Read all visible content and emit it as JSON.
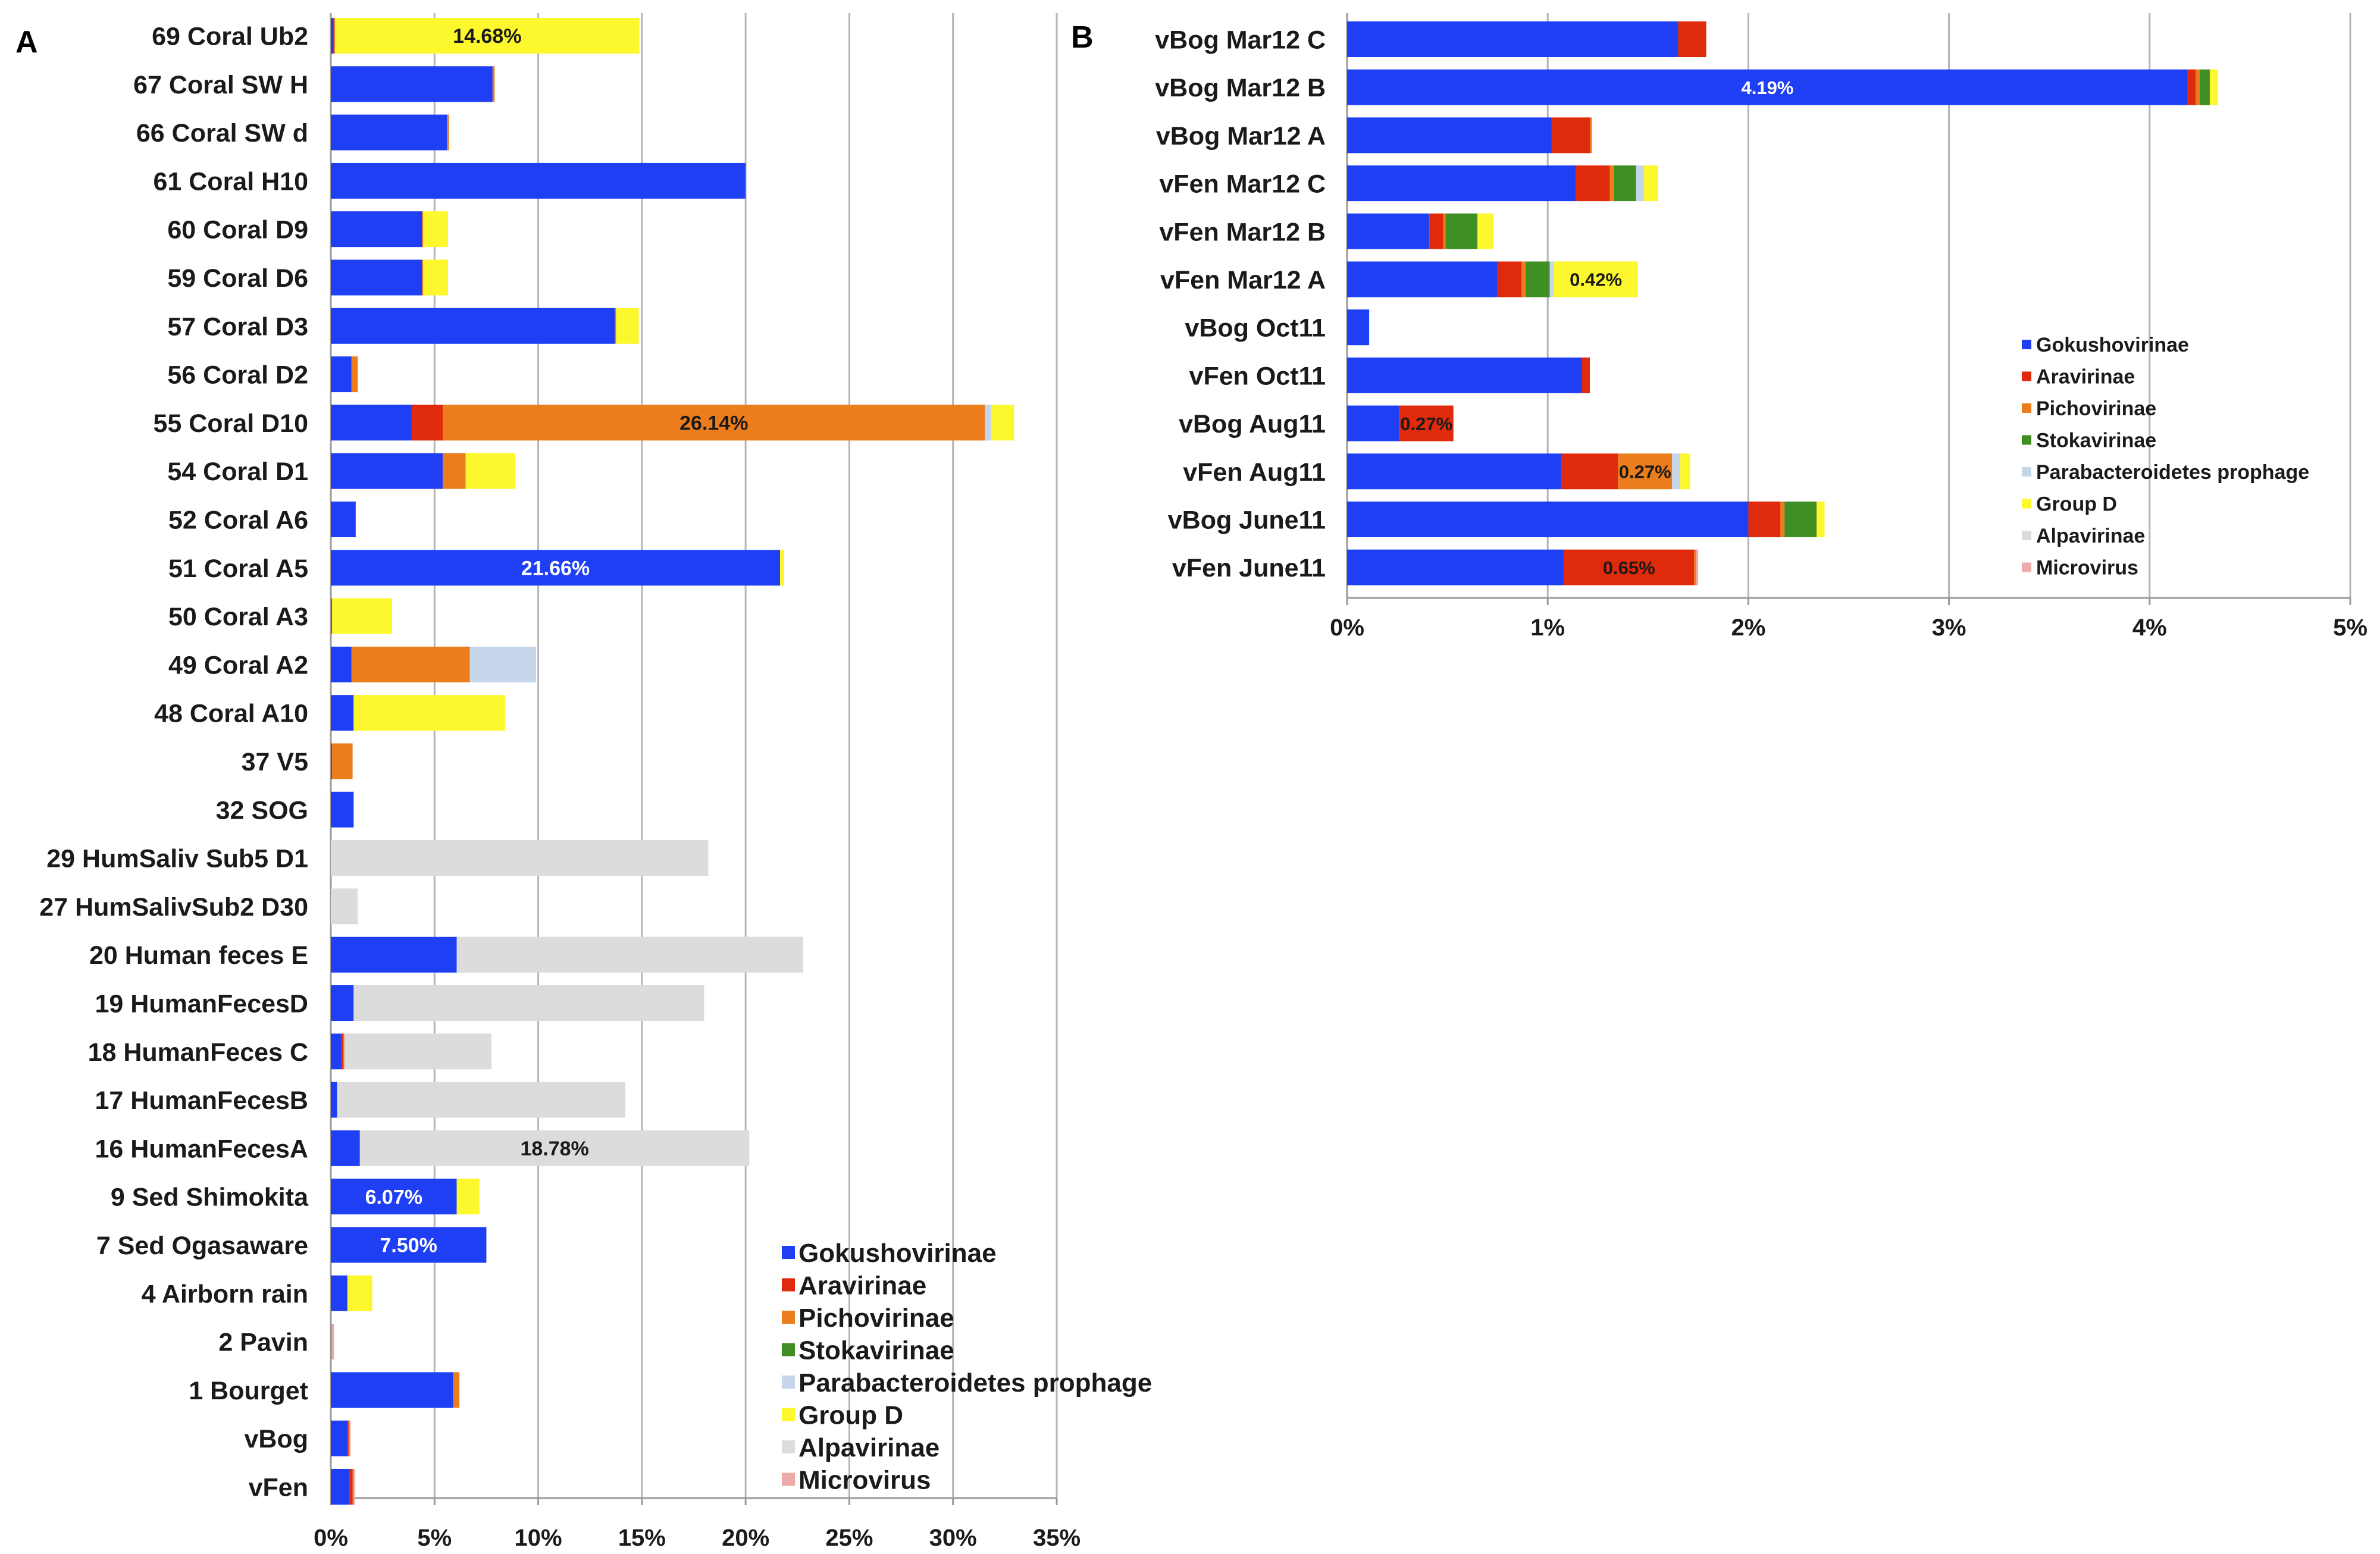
{
  "chart_data": [
    {
      "panel": "A",
      "type": "bar",
      "orientation": "horizontal",
      "stacked": true,
      "categories": [
        "69 Coral Ub2",
        "67 Coral SW H",
        "66 Coral SW d",
        "61 Coral H10",
        "60 Coral D9",
        "59 Coral D6",
        "57 Coral D3",
        "56 Coral D2",
        "55 Coral D10",
        "54 Coral D1",
        "52 Coral A6",
        "51 Coral A5",
        "50 Coral A3",
        "49 Coral A2",
        "48 Coral A10",
        "37 V5",
        "32 SOG",
        "29 HumSaliv Sub5 D1",
        "27 HumSalivSub2 D30",
        "20 Human feces E",
        "19 HumanFecesD",
        "18 HumanFeces C",
        "17 HumanFecesB",
        "16 HumanFecesA",
        "9 Sed Shimokita",
        "7 Sed Ogasaware",
        "4 Airborn rain",
        "2 Pavin",
        "1 Bourget",
        "vBog",
        "vFen"
      ],
      "series": [
        {
          "name": "Gokushovirinae",
          "color": "#1f3ff5",
          "values": [
            0.1,
            7.8,
            5.6,
            20.0,
            4.4,
            4.4,
            13.7,
            1.0,
            3.9,
            5.4,
            1.2,
            21.66,
            0.05,
            1.0,
            1.1,
            0.05,
            1.1,
            0,
            0,
            6.07,
            1.1,
            0.5,
            0.3,
            1.4,
            6.07,
            7.5,
            0.8,
            0,
            5.9,
            0.8,
            0.9
          ]
        },
        {
          "name": "Aravirinae",
          "color": "#e02a0c",
          "values": [
            0.05,
            0,
            0,
            0,
            0,
            0,
            0,
            0,
            1.5,
            0,
            0,
            0,
            0,
            0,
            0,
            0,
            0,
            0,
            0,
            0,
            0,
            0.1,
            0,
            0,
            0,
            0,
            0,
            0,
            0,
            0.05,
            0.15
          ]
        },
        {
          "name": "Pichovirinae",
          "color": "#ec7d1c",
          "values": [
            0.05,
            0.1,
            0.1,
            0,
            0.05,
            0.05,
            0.05,
            0.3,
            26.14,
            1.1,
            0,
            0,
            0,
            5.7,
            0,
            1.0,
            0,
            0,
            0,
            0,
            0,
            0.05,
            0,
            0,
            0,
            0,
            0,
            0.05,
            0.3,
            0.05,
            0.05
          ]
        },
        {
          "name": "Stokavirinae",
          "color": "#3f8f24",
          "values": [
            0,
            0,
            0,
            0,
            0,
            0,
            0,
            0,
            0,
            0,
            0,
            0,
            0,
            0,
            0,
            0,
            0,
            0,
            0,
            0,
            0,
            0,
            0,
            0,
            0,
            0,
            0,
            0,
            0,
            0,
            0
          ]
        },
        {
          "name": "Parabacteroidetes prophage",
          "color": "#c6d6ea",
          "values": [
            0,
            0,
            0,
            0,
            0,
            0,
            0,
            0,
            0.3,
            0,
            0,
            0,
            0,
            3.2,
            0,
            0,
            0,
            0,
            0,
            0,
            0,
            0,
            0,
            0,
            0,
            0,
            0,
            0,
            0,
            0,
            0
          ]
        },
        {
          "name": "Group D",
          "color": "#fdf72e",
          "values": [
            14.68,
            0,
            0,
            0,
            1.2,
            1.2,
            1.1,
            0,
            1.1,
            2.4,
            0,
            0.2,
            2.9,
            0,
            7.3,
            0,
            0,
            0,
            0,
            0,
            0,
            0,
            0,
            0,
            1.1,
            0,
            1.2,
            0,
            0,
            0,
            0
          ]
        },
        {
          "name": "Alpavirinae",
          "color": "#dcdcdc",
          "values": [
            0,
            0,
            0,
            0,
            0,
            0,
            0,
            0,
            0,
            0,
            0,
            0,
            0,
            0,
            0,
            0,
            0,
            18.2,
            1.3,
            16.7,
            16.9,
            7.1,
            13.9,
            18.78,
            0,
            0,
            0,
            0,
            0,
            0,
            0
          ]
        },
        {
          "name": "Microvirus",
          "color": "#eeaaa8",
          "values": [
            0,
            0,
            0,
            0,
            0,
            0,
            0,
            0,
            0,
            0,
            0,
            0,
            0,
            0,
            0,
            0,
            0,
            0,
            0,
            0,
            0,
            0,
            0,
            0,
            0,
            0,
            0,
            0.1,
            0,
            0.05,
            0.05
          ]
        }
      ],
      "data_labels": [
        {
          "category": "69 Coral Ub2",
          "series": "Group D",
          "text": "14.68%",
          "color": "#1a1a1a"
        },
        {
          "category": "55 Coral D10",
          "series": "Pichovirinae",
          "text": "26.14%",
          "color": "#1a1a1a"
        },
        {
          "category": "51 Coral A5",
          "series": "Gokushovirinae",
          "text": "21.66%",
          "color": "#ffffff"
        },
        {
          "category": "16 HumanFecesA",
          "series": "Alpavirinae",
          "text": "18.78%",
          "color": "#1a1a1a"
        },
        {
          "category": "9 Sed Shimokita",
          "series": "Gokushovirinae",
          "text": "6.07%",
          "color": "#ffffff"
        },
        {
          "category": "7 Sed Ogasaware",
          "series": "Gokushovirinae",
          "text": "7.50%",
          "color": "#ffffff"
        }
      ],
      "xlim": [
        0,
        35
      ],
      "xticks": [
        0,
        5,
        10,
        15,
        20,
        25,
        30,
        35
      ],
      "xtick_labels": [
        "0%",
        "5%",
        "10%",
        "15%",
        "20%",
        "25%",
        "30%",
        "35%"
      ],
      "grid": true,
      "legend_position": "bottom-right",
      "title": "",
      "xlabel": "",
      "ylabel": ""
    },
    {
      "panel": "B",
      "type": "bar",
      "orientation": "horizontal",
      "stacked": true,
      "categories": [
        "vBog Mar12 C",
        "vBog Mar12 B",
        "vBog Mar12 A",
        "vFen Mar12 C",
        "vFen Mar12 B",
        "vFen Mar12 A",
        "vBog Oct11",
        "vFen Oct11",
        "vBog Aug11",
        "vFen Aug11",
        "vBog June11",
        "vFen June11"
      ],
      "series": [
        {
          "name": "Gokushovirinae",
          "color": "#1f3ff5",
          "values": [
            1.65,
            4.19,
            1.02,
            1.14,
            0.41,
            0.75,
            0.11,
            1.17,
            0.26,
            1.07,
            2.0,
            1.08
          ]
        },
        {
          "name": "Aravirinae",
          "color": "#e02a0c",
          "values": [
            0.14,
            0.04,
            0.19,
            0.17,
            0.07,
            0.12,
            0,
            0.04,
            0.27,
            0.28,
            0.16,
            0.65
          ]
        },
        {
          "name": "Pichovirinae",
          "color": "#ec7d1c",
          "values": [
            0,
            0.02,
            0.01,
            0.02,
            0.01,
            0.02,
            0,
            0,
            0,
            0.27,
            0.02,
            0.01
          ]
        },
        {
          "name": "Stokavirinae",
          "color": "#3f8f24",
          "values": [
            0,
            0.05,
            0,
            0.11,
            0.16,
            0.12,
            0,
            0,
            0,
            0,
            0.16,
            0
          ]
        },
        {
          "name": "Parabacteroidetes prophage",
          "color": "#c6d6ea",
          "values": [
            0,
            0,
            0,
            0.04,
            0,
            0.02,
            0,
            0,
            0,
            0.04,
            0,
            0
          ]
        },
        {
          "name": "Group D",
          "color": "#fdf72e",
          "values": [
            0,
            0.04,
            0,
            0.07,
            0.08,
            0.42,
            0,
            0,
            0,
            0.05,
            0.04,
            0
          ]
        },
        {
          "name": "Alpavirinae",
          "color": "#dcdcdc",
          "values": [
            0,
            0,
            0,
            0,
            0,
            0,
            0,
            0,
            0,
            0,
            0,
            0
          ]
        },
        {
          "name": "Microvirus",
          "color": "#eeaaa8",
          "values": [
            0,
            0,
            0,
            0,
            0,
            0,
            0,
            0,
            0,
            0,
            0,
            0.01
          ]
        }
      ],
      "data_labels": [
        {
          "category": "vBog Mar12 B",
          "series": "Gokushovirinae",
          "text": "4.19%",
          "color": "#ffffff"
        },
        {
          "category": "vFen Mar12 A",
          "series": "Group D",
          "text": "0.42%",
          "color": "#1a1a1a"
        },
        {
          "category": "vBog Aug11",
          "series": "Aravirinae",
          "text": "0.27%",
          "color": "#1a1a1a"
        },
        {
          "category": "vFen Aug11",
          "series": "Pichovirinae",
          "text": "0.27%",
          "color": "#1a1a1a"
        },
        {
          "category": "vFen June11",
          "series": "Aravirinae",
          "text": "0.65%",
          "color": "#1a1a1a"
        }
      ],
      "xlim": [
        0,
        5
      ],
      "xticks": [
        0,
        1,
        2,
        3,
        4,
        5
      ],
      "xtick_labels": [
        "0%",
        "1%",
        "2%",
        "3%",
        "4%",
        "5%"
      ],
      "grid": true,
      "legend_position": "middle-right",
      "title": "",
      "xlabel": "",
      "ylabel": ""
    }
  ]
}
